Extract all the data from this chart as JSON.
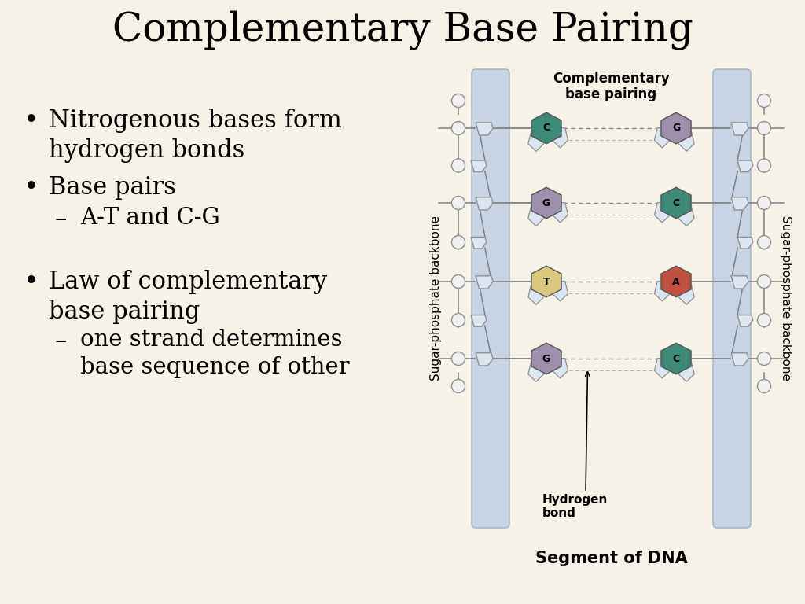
{
  "title": "Complementary Base Pairing",
  "background_color": "#f7f2e8",
  "bullet_points": [
    {
      "text": "Nitrogenous bases form\nhydrogen bonds",
      "level": 0
    },
    {
      "text": "Base pairs",
      "level": 0
    },
    {
      "text": "A-T and C-G",
      "level": 1
    },
    {
      "text": "Law of complementary\nbase pairing",
      "level": 0
    },
    {
      "text": "one strand determines\nbase sequence of other",
      "level": 1
    }
  ],
  "diagram_label_top": "Complementary\nbase pairing",
  "diagram_label_bottom": "Segment of DNA",
  "left_backbone_label": "Sugar-phosphate backbone",
  "right_backbone_label": "Sugar-phosphate backbone",
  "hydrogen_bond_label": "Hydrogen\nbond",
  "base_pairs": [
    {
      "left": "C",
      "right": "G",
      "left_color": "#3d8a78",
      "right_color": "#9e8faa"
    },
    {
      "left": "G",
      "right": "C",
      "left_color": "#9e8faa",
      "right_color": "#3d8a78"
    },
    {
      "left": "T",
      "right": "A",
      "left_color": "#d8c97c",
      "right_color": "#c05040"
    },
    {
      "left": "G",
      "right": "C",
      "left_color": "#9e8faa",
      "right_color": "#3d8a78"
    }
  ],
  "backbone_color": "#c8d4e4",
  "backbone_border": "#a0b0c4",
  "connector_color": "#808080",
  "dashed_color": "#888888",
  "sugar_color": "#dce6f0",
  "sugar_border": "#909090",
  "phosphate_color": "#f0f0f0",
  "phosphate_border": "#909090",
  "title_fontsize": 36,
  "bullet_fontsize": 22,
  "label_fontsize": 13
}
